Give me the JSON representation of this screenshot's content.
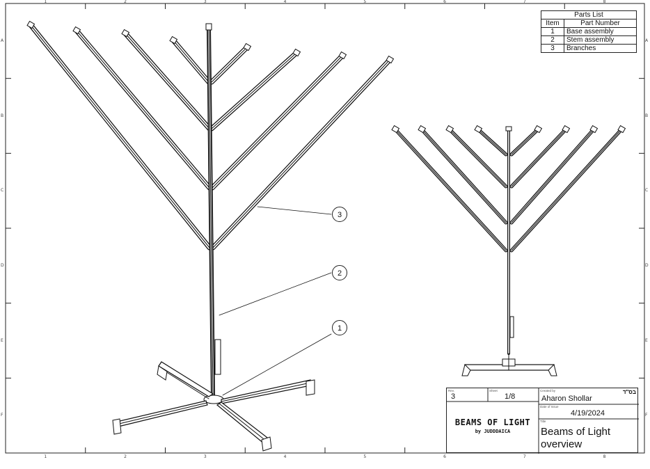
{
  "zones": {
    "columns": [
      "1",
      "2",
      "3",
      "4",
      "5",
      "6",
      "7",
      "8"
    ],
    "rows": [
      "A",
      "B",
      "C",
      "D",
      "E",
      "F"
    ]
  },
  "parts_list": {
    "title": "Parts List",
    "headers": {
      "item": "Item",
      "part_number": "Part Number"
    },
    "rows": [
      {
        "item": "1",
        "part_number": "Base assembly"
      },
      {
        "item": "2",
        "part_number": "Stem assembly"
      },
      {
        "item": "3",
        "part_number": "Branches"
      }
    ]
  },
  "balloons": {
    "b1": "1",
    "b2": "2",
    "b3": "3"
  },
  "title_block": {
    "rev_label": "Rev.",
    "rev_value": "3",
    "sheet_label": "Sheet",
    "sheet_value": "1/8",
    "created_by_label": "Created by",
    "created_by_value": "Aharon Shollar",
    "hebrew_mark": "בס\"ד",
    "date_label": "Date of Issue",
    "date_value": "4/19/2024",
    "title_label": "Title",
    "title_line1": "Beams of Light",
    "title_line2": "overview",
    "logo_line1": "BEAMS OF LIGHT",
    "logo_line2": "by JUDDDAICA"
  }
}
